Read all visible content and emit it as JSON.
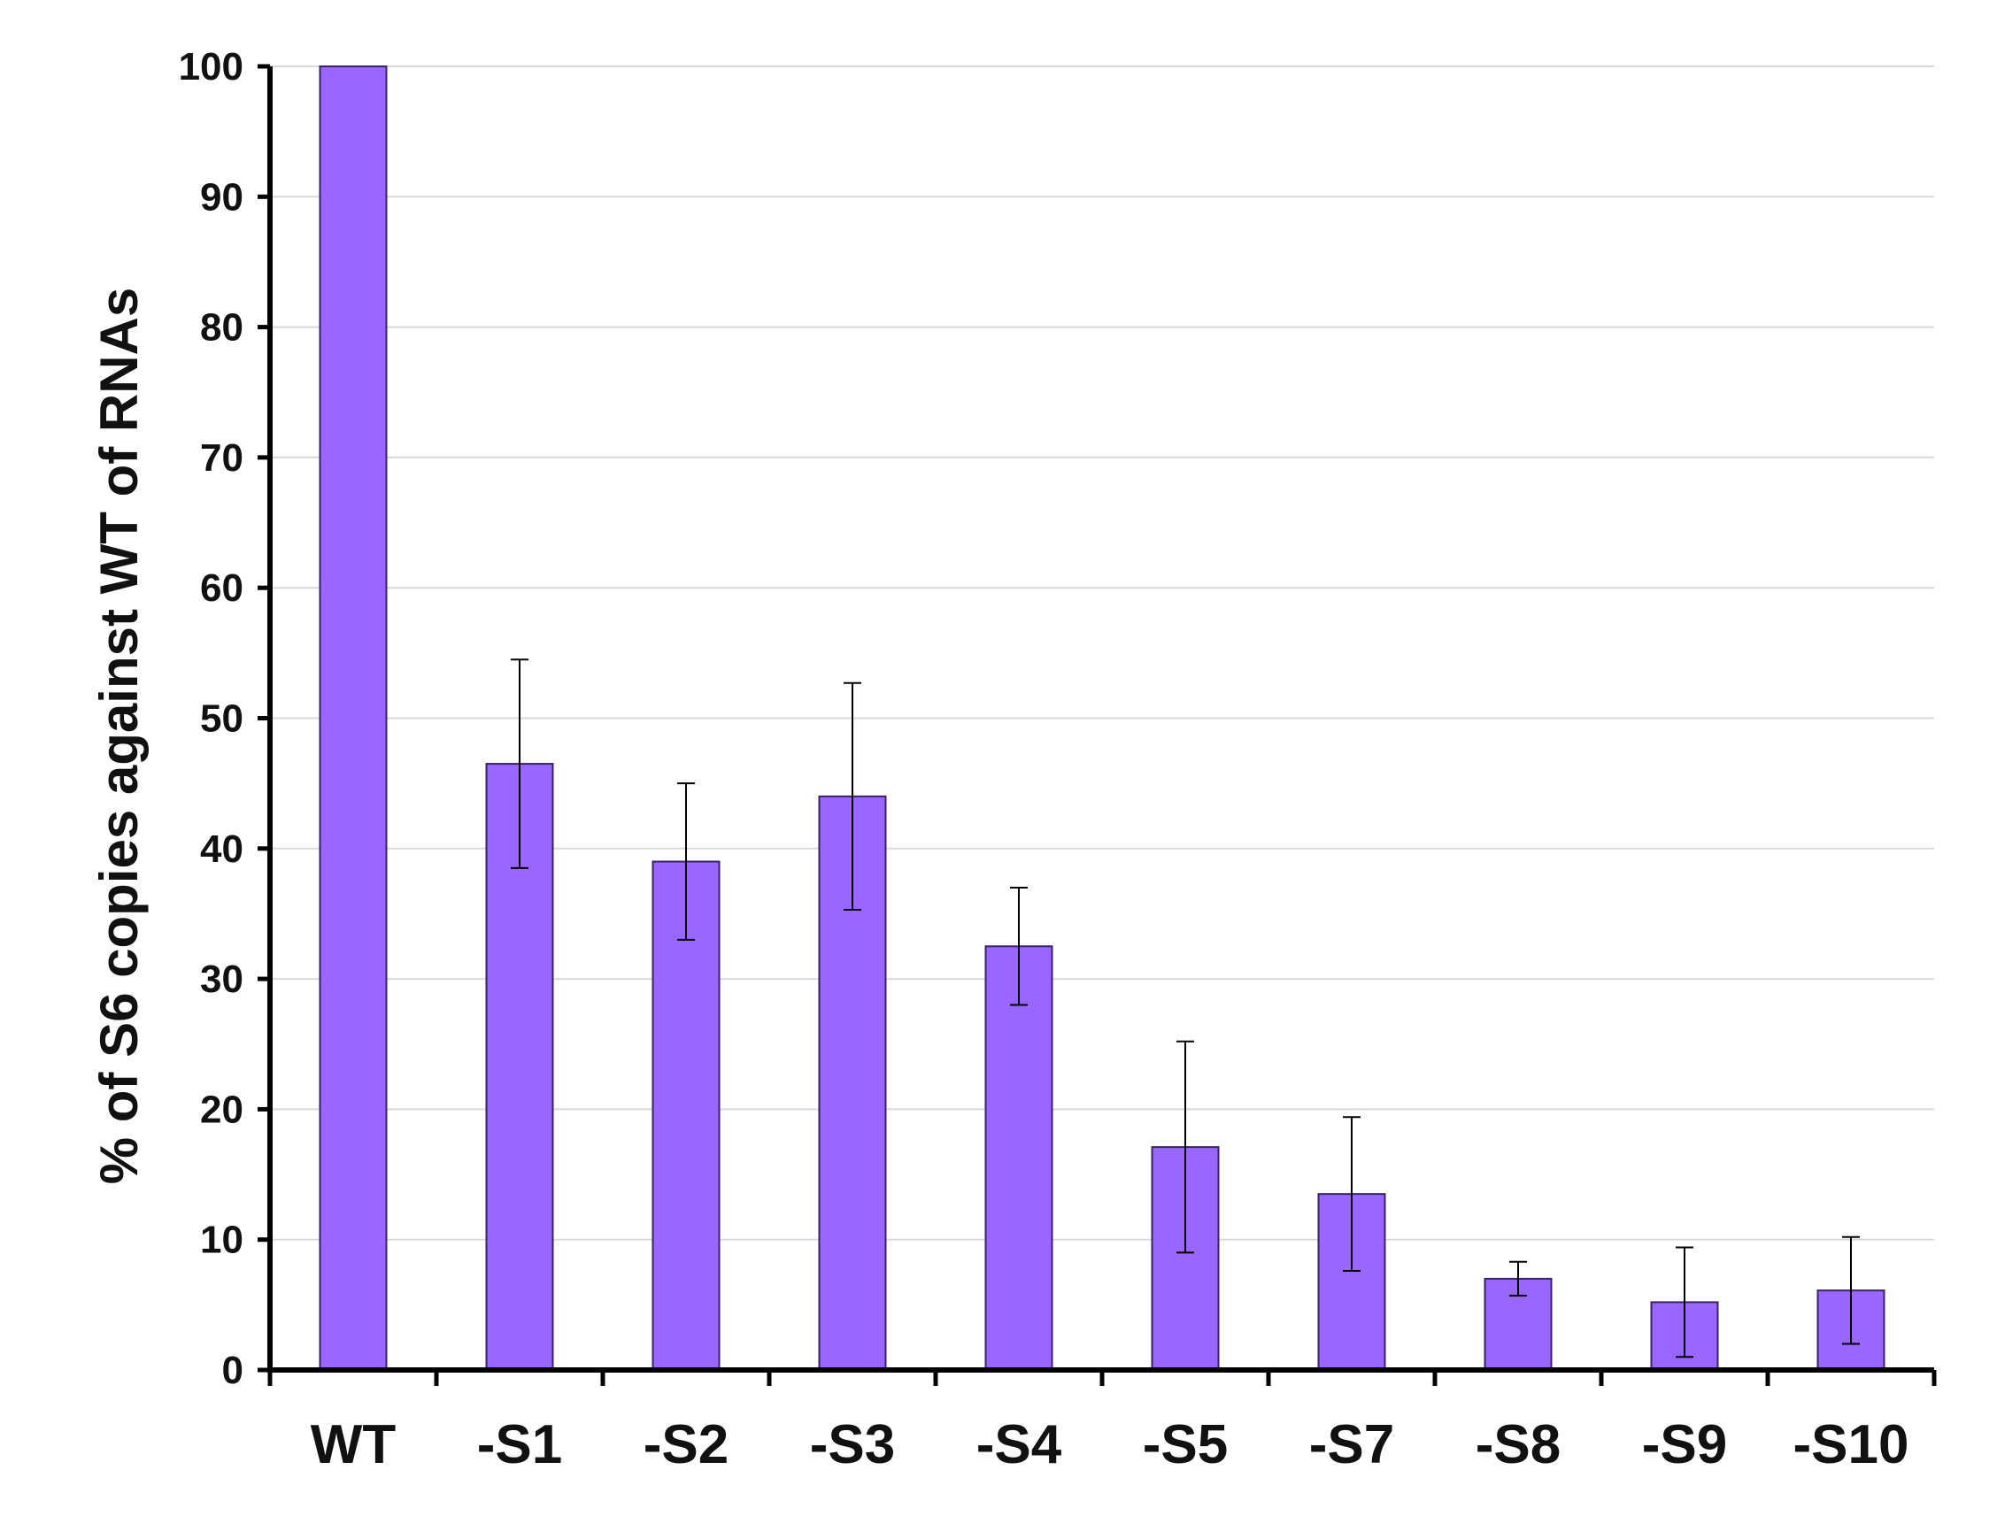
{
  "chart_data": {
    "type": "bar",
    "title": "",
    "xlabel": "",
    "ylabel": "% of S6 copies  against WT of  RNAs",
    "categories": [
      "WT",
      "-S1",
      "-S2",
      "-S3",
      "-S4",
      "-S5",
      "-S7",
      "-S8",
      "-S9",
      "-S10"
    ],
    "values": [
      100,
      46.5,
      39,
      44,
      32.5,
      17.1,
      13.5,
      7,
      5.2,
      6.1
    ],
    "error": [
      0,
      8,
      6,
      8.7,
      4.5,
      8.1,
      5.9,
      1.3,
      4.2,
      4.1
    ],
    "ylim": [
      0,
      100
    ],
    "yticks": [
      "0",
      "10",
      "20",
      "30",
      "40",
      "50",
      "60",
      "70",
      "80",
      "90",
      "100"
    ],
    "grid": true,
    "bar_color": "#9966ff",
    "bar_edge_color": "#3a2266",
    "grid_color": "#d9d9d9"
  }
}
